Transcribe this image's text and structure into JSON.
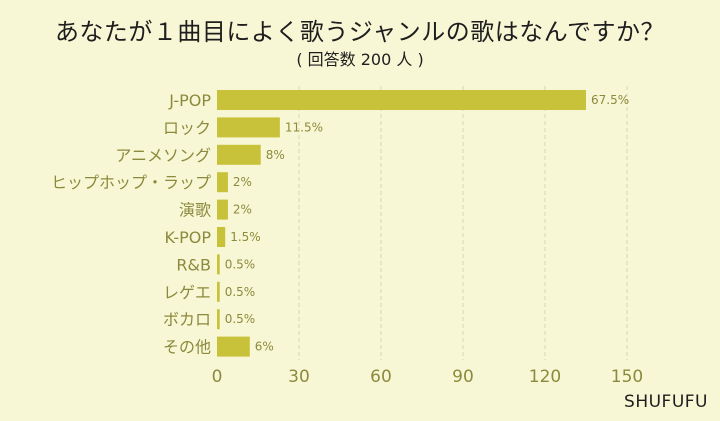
{
  "chart_data": {
    "type": "bar",
    "orientation": "horizontal",
    "title": "あなたが１曲目によく歌うジャンルの歌はなんですか？",
    "subtitle": "( 回答数 200 人 )",
    "categories": [
      "J-POP",
      "ロック",
      "アニメソング",
      "ヒップホップ・ラップ",
      "演歌",
      "K-POP",
      "R&B",
      "レゲエ",
      "ボカロ",
      "その他"
    ],
    "values": [
      135,
      23,
      16,
      4,
      4,
      3,
      1,
      1,
      1,
      12
    ],
    "value_labels": [
      "67.5%",
      "11.5%",
      "8%",
      "2%",
      "2%",
      "1.5%",
      "0.5%",
      "0.5%",
      "0.5%",
      "6%"
    ],
    "xlim": [
      0,
      150
    ],
    "xticks": [
      0,
      30,
      60,
      90,
      120,
      150
    ],
    "grid": true,
    "colors": {
      "bar": "#c8c23a",
      "axis_text": "#8c8a3c",
      "label_text": "#8c8a3c",
      "value_text": "#8c8a3c",
      "grid": "#d9d7b5"
    }
  },
  "brand": "SHUFUFU"
}
